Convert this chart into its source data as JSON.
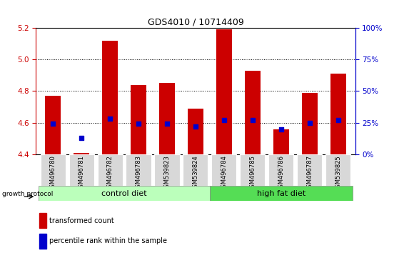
{
  "title": "GDS4010 / 10714409",
  "samples": [
    "GSM496780",
    "GSM496781",
    "GSM496782",
    "GSM496783",
    "GSM539823",
    "GSM539824",
    "GSM496784",
    "GSM496785",
    "GSM496786",
    "GSM496787",
    "GSM539825"
  ],
  "transformed_count": [
    4.77,
    4.41,
    5.12,
    4.84,
    4.85,
    4.69,
    5.19,
    4.93,
    4.56,
    4.79,
    4.91
  ],
  "percentile_rank": [
    24,
    13,
    28,
    24,
    24,
    22,
    27,
    27,
    20,
    25,
    27
  ],
  "ylim_left": [
    4.4,
    5.2
  ],
  "ylim_right": [
    0,
    100
  ],
  "yticks_left": [
    4.4,
    4.6,
    4.8,
    5.0,
    5.2
  ],
  "yticks_right": [
    0,
    25,
    50,
    75,
    100
  ],
  "ytick_labels_right": [
    "0%",
    "25%",
    "50%",
    "75%",
    "100%"
  ],
  "bar_color": "#cc0000",
  "dot_color": "#0000cc",
  "control_diet_indices": [
    0,
    1,
    2,
    3,
    4,
    5
  ],
  "high_fat_diet_indices": [
    6,
    7,
    8,
    9,
    10
  ],
  "control_color": "#bbffbb",
  "highfat_color": "#55dd55",
  "protocol_label": "growth protocol",
  "control_label": "control diet",
  "highfat_label": "high fat diet",
  "legend_red_label": "transformed count",
  "legend_blue_label": "percentile rank within the sample",
  "tick_label_color_left": "#cc0000",
  "tick_label_color_right": "#0000cc",
  "bar_bottom": 4.4,
  "figsize": [
    5.59,
    3.54
  ],
  "dpi": 100
}
